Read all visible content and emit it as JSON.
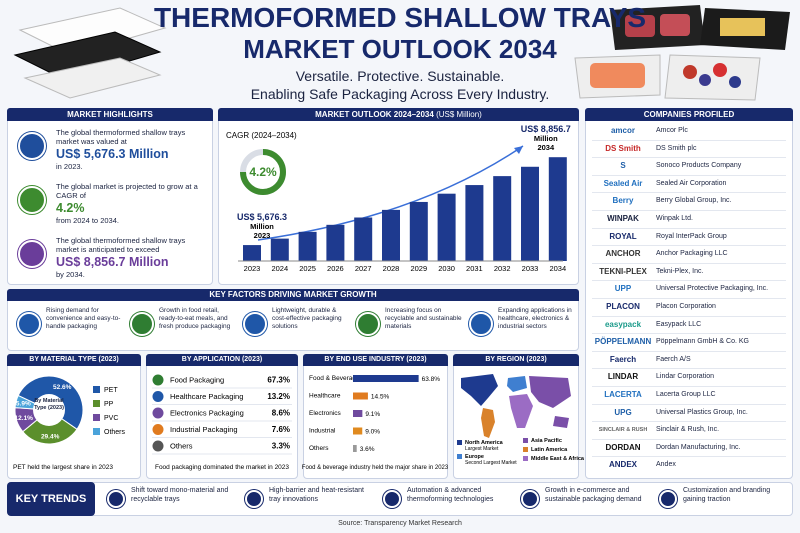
{
  "header": {
    "title_line1": "THERMOFORMED SHALLOW TRAYS",
    "title_line2": "MARKET OUTLOOK 2034",
    "tagline_line1": "Versatile. Protective. Sustainable.",
    "tagline_line2": "Enabling Safe Packaging Across Every Industry."
  },
  "highlights": {
    "title": "MARKET HIGHLIGHTS",
    "items": [
      {
        "text": "The global thermoformed shallow trays market was valued at",
        "figure": "US$ 5,676.3 Million",
        "tail": "in 2023.",
        "color": "#1f4e9c"
      },
      {
        "text": "The global market is projected to grow at a CAGR of",
        "figure": "4.2%",
        "tail": "from 2024 to 2034.",
        "color": "#3d8b2f"
      },
      {
        "text": "The global thermoformed shallow trays market is anticipated to exceed",
        "figure": "US$ 8,856.7 Million",
        "tail": "by 2034.",
        "color": "#6a3d9a"
      }
    ]
  },
  "chart_data": [
    {
      "type": "bar",
      "title": "MARKET OUTLOOK 2024–2034",
      "title_unit": "(US$ Million)",
      "categories": [
        "2023",
        "2024",
        "2025",
        "2026",
        "2027",
        "2028",
        "2029",
        "2030",
        "2031",
        "2032",
        "2033",
        "2034"
      ],
      "values": [
        5676.3,
        5910,
        6155,
        6409,
        6674,
        6950,
        7237,
        7536,
        7848,
        8172,
        8510,
        8856.7
      ],
      "value_labels": [
        "US$ 5,676.3",
        null,
        null,
        null,
        null,
        null,
        null,
        null,
        null,
        null,
        null,
        "US$ 8,856.7"
      ],
      "value_unit": "Million",
      "ylim": [
        5100,
        8900
      ],
      "color": "#1e3a8f",
      "cagr_label": "CAGR (2024–2034)",
      "cagr": "4.2%"
    },
    {
      "type": "pie",
      "title": "BY MATERIAL TYPE (2023)",
      "center_label": "By Material Type (2023)",
      "categories": [
        "PET",
        "PP",
        "PVC",
        "Others"
      ],
      "values": [
        52.6,
        29.4,
        12.1,
        5.9
      ],
      "value_labels": [
        "52.6%",
        "29.4%",
        "12.1%",
        "5.9%"
      ],
      "colors": [
        "#1f57a8",
        "#5b8f2c",
        "#6f4a9e",
        "#4aa3da"
      ],
      "note": "PET held the largest share in 2023"
    },
    {
      "type": "list",
      "title": "BY APPLICATION (2023)",
      "categories": [
        "Food Packaging",
        "Healthcare Packaging",
        "Electronics Packaging",
        "Industrial Packaging",
        "Others"
      ],
      "values": [
        67.3,
        13.2,
        8.6,
        7.6,
        3.3
      ],
      "value_labels": [
        "67.3%",
        "13.2%",
        "8.6%",
        "7.6%",
        "3.3%"
      ],
      "colors": [
        "#2f7d32",
        "#1f57a8",
        "#6f4a9e",
        "#e07b1f",
        "#555555"
      ],
      "note": "Food packaging dominated the market in 2023"
    },
    {
      "type": "hbar",
      "title": "BY END USE INDUSTRY (2023)",
      "categories": [
        "Food & Beverage",
        "Healthcare",
        "Electronics",
        "Industrial",
        "Others"
      ],
      "values": [
        63.8,
        14.5,
        9.1,
        9.0,
        3.6
      ],
      "value_labels": [
        "63.8%",
        "14.5%",
        "9.1%",
        "9.0%",
        "3.6%"
      ],
      "colors": [
        "#1e3a8f",
        "#e07b1f",
        "#6f4a9e",
        "#e08a1f",
        "#9a9a9a"
      ],
      "xlim": [
        0,
        70
      ],
      "note": "Food & beverage industry held the major share in 2023"
    }
  ],
  "region": {
    "title": "BY REGION (2023)",
    "legend": [
      {
        "name": "North America",
        "note": "Largest Market",
        "color": "#1e3a8f"
      },
      {
        "name": "Europe",
        "note": "Second Largest Market",
        "color": "#3f7fd0"
      },
      {
        "name": "Asia Pacific",
        "color": "#7a4fa8"
      },
      {
        "name": "Latin America",
        "color": "#d9822b"
      },
      {
        "name": "Middle East & Africa",
        "color": "#9b6cc4"
      }
    ]
  },
  "companies": {
    "title": "COMPANIES PROFILED",
    "items": [
      {
        "logo": "amcor",
        "name": "Amcor Plc",
        "color": "#1f5fa8"
      },
      {
        "logo": "DS Smith",
        "name": "DS Smith plc",
        "color": "#c62828"
      },
      {
        "logo": "S",
        "name": "Sonoco Products Company",
        "color": "#1f5fa8"
      },
      {
        "logo": "Sealed Air",
        "name": "Sealed Air Corporation",
        "color": "#1f6fbf"
      },
      {
        "logo": "Berry",
        "name": "Berry Global Group, Inc.",
        "color": "#1f6fbf"
      },
      {
        "logo": "WINPAK",
        "name": "Winpak Ltd.",
        "color": "#1b2340"
      },
      {
        "logo": "ROYAL",
        "name": "Royal InterPack Group",
        "color": "#17296b"
      },
      {
        "logo": "ANCHOR",
        "name": "Anchor Packaging LLC",
        "color": "#333333"
      },
      {
        "logo": "TEKNI-PLEX",
        "name": "Tekni-Plex, Inc.",
        "color": "#333333"
      },
      {
        "logo": "UPP",
        "name": "Universal Protective Packaging, Inc.",
        "color": "#1f6fbf"
      },
      {
        "logo": "PLACON",
        "name": "Placon Corporation",
        "color": "#17296b"
      },
      {
        "logo": "easypack",
        "name": "Easypack LLC",
        "color": "#1a9a8a"
      },
      {
        "logo": "PÖPPELMANN",
        "name": "Pöppelmann GmbH & Co. KG",
        "color": "#1f5fa8"
      },
      {
        "logo": "Faerch",
        "name": "Faerch A/S",
        "color": "#17296b"
      },
      {
        "logo": "LINDAR",
        "name": "Lindar Corporation",
        "color": "#111111"
      },
      {
        "logo": "LACERTA",
        "name": "Lacerta Group LLC",
        "color": "#1f6fbf"
      },
      {
        "logo": "UPG",
        "name": "Universal Plastics Group, Inc.",
        "color": "#1f5fa8"
      },
      {
        "logo": "SINCLAIR & RUSH",
        "name": "Sinclair & Rush, Inc.",
        "color": "#666666"
      },
      {
        "logo": "DORDAN",
        "name": "Dordan Manufacturing, Inc.",
        "color": "#111111"
      },
      {
        "logo": "ANDEX",
        "name": "Andex",
        "color": "#17296b"
      }
    ]
  },
  "factors": {
    "title": "KEY FACTORS DRIVING MARKET GROWTH",
    "items": [
      "Rising demand for convenience and easy-to-handle packaging",
      "Growth in food retail, ready-to-eat meals, and fresh produce packaging",
      "Lightweight, durable & cost-effective packaging solutions",
      "Increasing focus on recyclable and sustainable materials",
      "Expanding applications in healthcare, electronics & industrial sectors"
    ]
  },
  "trends": {
    "title": "KEY TRENDS",
    "items": [
      "Shift toward mono-material and recyclable trays",
      "High-barrier and heat-resistant tray innovations",
      "Automation & advanced thermoforming technologies",
      "Growth in e-commerce and sustainable packaging demand",
      "Customization and branding gaining traction"
    ]
  },
  "source": "Source: Transparency Market Research"
}
